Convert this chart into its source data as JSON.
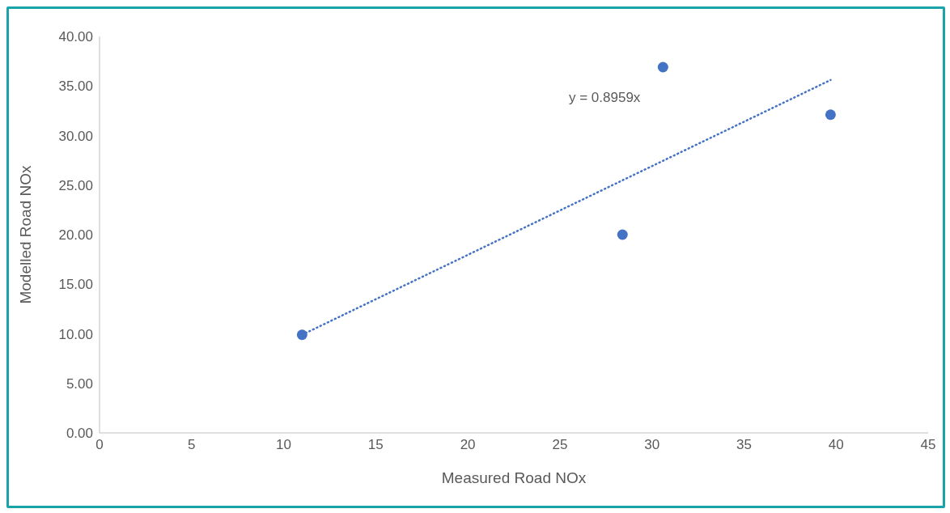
{
  "chart_data": {
    "type": "scatter",
    "xlabel": "Measured Road NOx",
    "ylabel": "Modelled Road NOx",
    "xlim": [
      0,
      45
    ],
    "xticks": [
      0,
      5,
      10,
      15,
      20,
      25,
      30,
      35,
      40,
      45
    ],
    "ylim": [
      0,
      40
    ],
    "yticks": [
      {
        "value": 0,
        "label": "0.00"
      },
      {
        "value": 5,
        "label": "5.00"
      },
      {
        "value": 10,
        "label": "10.00"
      },
      {
        "value": 15,
        "label": "15.00"
      },
      {
        "value": 20,
        "label": "20.00"
      },
      {
        "value": 25,
        "label": "25.00"
      },
      {
        "value": 30,
        "label": "30.00"
      },
      {
        "value": 35,
        "label": "35.00"
      },
      {
        "value": 40,
        "label": "40.00"
      }
    ],
    "grid": false,
    "series": [
      {
        "color": "#4472c4",
        "marker": "circle",
        "x": [
          11.0,
          28.4,
          30.6,
          39.7
        ],
        "values": [
          9.9,
          20.0,
          36.9,
          32.1
        ]
      },
      {
        "type": "line",
        "color": "#4472c4",
        "marker": "none",
        "line_style": "dotted",
        "x": [
          11.0,
          39.7
        ],
        "values": [
          9.9,
          35.6
        ]
      }
    ],
    "annotations": [
      "y = 0.8959x"
    ]
  }
}
